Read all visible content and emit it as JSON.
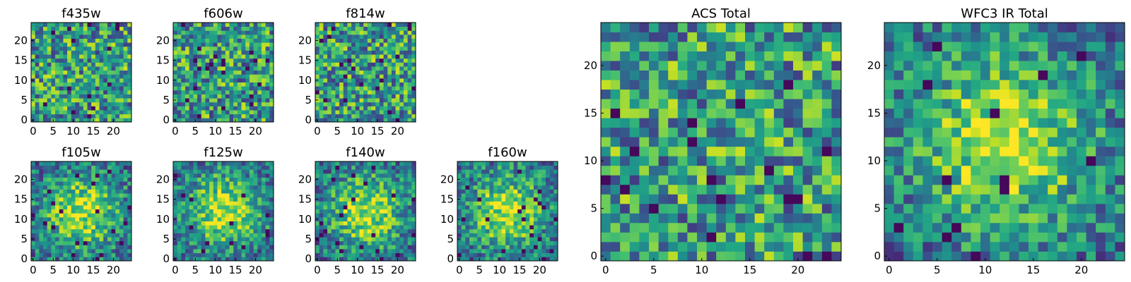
{
  "chart_data": [
    {
      "type": "heatmap",
      "title": "f435w",
      "grid_size": 25,
      "xticks": [
        "0",
        "5",
        "10",
        "15",
        "20"
      ],
      "yticks": [
        "0",
        "5",
        "10",
        "15",
        "20"
      ],
      "seed": 11,
      "bias": "uniform",
      "colormap": "viridis"
    },
    {
      "type": "heatmap",
      "title": "f606w",
      "grid_size": 25,
      "xticks": [
        "0",
        "5",
        "10",
        "15",
        "20"
      ],
      "yticks": [
        "0",
        "5",
        "10",
        "15",
        "20"
      ],
      "seed": 23,
      "bias": "uniform",
      "colormap": "viridis"
    },
    {
      "type": "heatmap",
      "title": "f814w",
      "grid_size": 25,
      "xticks": [
        "0",
        "5",
        "10",
        "15",
        "20"
      ],
      "yticks": [
        "0",
        "5",
        "10",
        "15",
        "20"
      ],
      "seed": 37,
      "bias": "uniform",
      "colormap": "viridis"
    },
    {
      "type": "heatmap",
      "title": "f105w",
      "grid_size": 25,
      "xticks": [
        "0",
        "5",
        "10",
        "15",
        "20"
      ],
      "yticks": [
        "0",
        "5",
        "10",
        "15",
        "20"
      ],
      "seed": 41,
      "bias": "center",
      "colormap": "viridis"
    },
    {
      "type": "heatmap",
      "title": "f125w",
      "grid_size": 25,
      "xticks": [
        "0",
        "5",
        "10",
        "15",
        "20"
      ],
      "yticks": [
        "0",
        "5",
        "10",
        "15",
        "20"
      ],
      "seed": 53,
      "bias": "center",
      "colormap": "viridis"
    },
    {
      "type": "heatmap",
      "title": "f140w",
      "grid_size": 25,
      "xticks": [
        "0",
        "5",
        "10",
        "15",
        "20"
      ],
      "yticks": [
        "0",
        "5",
        "10",
        "15",
        "20"
      ],
      "seed": 67,
      "bias": "center",
      "colormap": "viridis"
    },
    {
      "type": "heatmap",
      "title": "f160w",
      "grid_size": 25,
      "xticks": [
        "0",
        "5",
        "10",
        "15",
        "20"
      ],
      "yticks": [
        "0",
        "5",
        "10",
        "15",
        "20"
      ],
      "seed": 71,
      "bias": "center",
      "colormap": "viridis"
    },
    {
      "type": "heatmap",
      "title": "ACS Total",
      "grid_size": 25,
      "xticks": [
        "0",
        "5",
        "10",
        "15",
        "20"
      ],
      "yticks": [
        "0",
        "5",
        "10",
        "15",
        "20"
      ],
      "seed": 83,
      "bias": "uniform",
      "colormap": "viridis"
    },
    {
      "type": "heatmap",
      "title": "WFC3 IR Total",
      "grid_size": 25,
      "xticks": [
        "0",
        "5",
        "10",
        "15",
        "20"
      ],
      "yticks": [
        "0",
        "5",
        "10",
        "15",
        "20"
      ],
      "seed": 97,
      "bias": "center",
      "colormap": "viridis"
    }
  ]
}
